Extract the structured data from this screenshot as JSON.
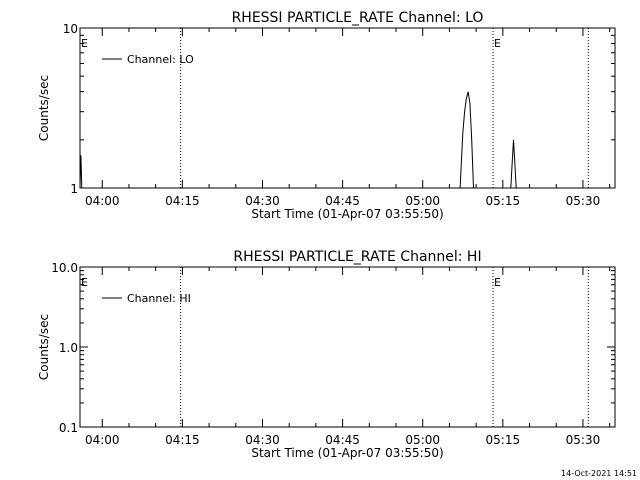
{
  "chart_data": [
    {
      "type": "line",
      "title": "RHESSI PARTICLE_RATE Channel: LO",
      "xlabel": "Start Time (01-Apr-07 03:55:50)",
      "ylabel": "Counts/sec",
      "yscale": "log",
      "ylim": [
        1,
        10
      ],
      "xlim": [
        "03:55:50",
        "05:36:00"
      ],
      "x_ticks": [
        "04:00",
        "04:15",
        "04:30",
        "04:45",
        "05:00",
        "05:15",
        "05:30"
      ],
      "y_ticks": [
        "1",
        "10"
      ],
      "legend": {
        "label": "Channel: LO",
        "placement": "top-left"
      },
      "event_lines": [
        {
          "time": "04:14:40",
          "label": ""
        },
        {
          "time": "05:13:10",
          "label": "E"
        },
        {
          "time": "05:31:00",
          "label": ""
        }
      ],
      "edge_label": "E",
      "series": [
        {
          "points": [
            [
              "03:55:50",
              1
            ],
            [
              "03:56:00",
              1.6
            ],
            [
              "03:56:10",
              1
            ],
            [
              "05:07:00",
              1
            ],
            [
              "05:07:30",
              2.2
            ],
            [
              "05:07:50",
              3.0
            ],
            [
              "05:08:10",
              3.6
            ],
            [
              "05:08:30",
              4.0
            ],
            [
              "05:08:50",
              3.4
            ],
            [
              "05:09:10",
              2.0
            ],
            [
              "05:09:30",
              1
            ],
            [
              "05:16:30",
              1
            ],
            [
              "05:16:50",
              1.6
            ],
            [
              "05:17:00",
              2.0
            ],
            [
              "05:17:10",
              1.6
            ],
            [
              "05:17:30",
              1
            ]
          ]
        }
      ]
    },
    {
      "type": "line",
      "title": "RHESSI PARTICLE_RATE Channel: HI",
      "xlabel": "Start Time (01-Apr-07 03:55:50)",
      "ylabel": "Counts/sec",
      "yscale": "log",
      "ylim": [
        0.1,
        10
      ],
      "xlim": [
        "03:55:50",
        "05:36:00"
      ],
      "x_ticks": [
        "04:00",
        "04:15",
        "04:30",
        "04:45",
        "05:00",
        "05:15",
        "05:30"
      ],
      "y_ticks": [
        "0.1",
        "1.0",
        "10.0"
      ],
      "legend": {
        "label": "Channel: HI",
        "placement": "top-left"
      },
      "event_lines": [
        {
          "time": "04:14:40",
          "label": ""
        },
        {
          "time": "05:13:10",
          "label": "E"
        },
        {
          "time": "05:31:00",
          "label": ""
        }
      ],
      "edge_label": "E",
      "series": [
        {
          "points": []
        }
      ]
    }
  ],
  "footer": {
    "timestamp": "14-Oct-2021 14:51"
  }
}
